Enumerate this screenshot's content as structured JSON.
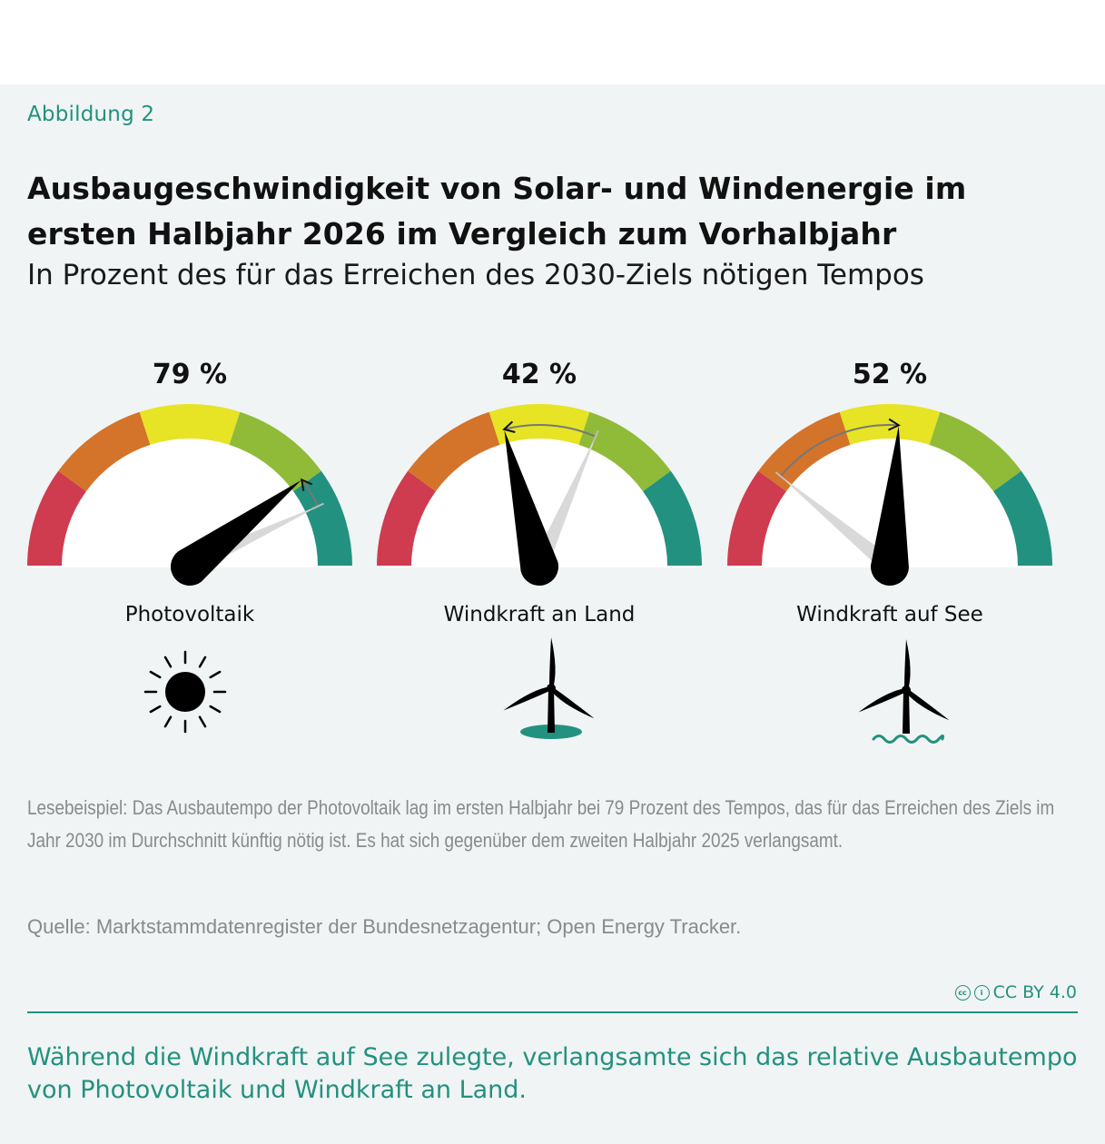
{
  "figure_label": "Abbildung 2",
  "title": "Ausbaugeschwindigkeit von Solar- und Windenergie im ersten Halbjahr 2026 im Vergleich zum Vorhalbjahr",
  "subtitle": "In Prozent des für das Erreichen des 2030-Ziels nötigen Tempos",
  "zone_colors": [
    "#cf3c4f",
    "#d4732a",
    "#e6e424",
    "#8fbb38",
    "#23917f"
  ],
  "colors": {
    "accent": "#23917f",
    "needle_current": "#000000",
    "needle_previous": "#d9d9d9",
    "background": "#f0f4f4"
  },
  "chart_data": {
    "type": "gauge",
    "unit": "%",
    "categories": [
      "Photovoltaik",
      "Windkraft an Land",
      "Windkraft auf See"
    ],
    "series": [
      {
        "name": "Erstes Halbjahr 2026",
        "values": [
          79,
          42,
          52
        ]
      }
    ],
    "previous_values_estimated": [
      86,
      63,
      22
    ],
    "value_labels": [
      "79 %",
      "42 %",
      "52 %"
    ],
    "gauge_range": [
      0,
      100
    ],
    "zones": 5,
    "icons": [
      "sun-icon",
      "wind-turbine-land-icon",
      "wind-turbine-sea-icon"
    ]
  },
  "reading_example": "Lesebeispiel: Das Ausbautempo der Photovoltaik lag im ersten Halbjahr bei 79 Prozent des Tempos, das für das Erreichen des Ziels im Jahr 2030 im Durchschnitt künftig nötig ist. Es hat sich gegenüber dem zweiten Halbjahr 2025 verlangsamt.",
  "source": "Quelle: Marktstammdatenregister der Bundesnetzagentur; Open Energy Tracker.",
  "license": "CC BY 4.0",
  "caption": "Während die Windkraft auf See zulegte, verlangsamte sich das relative Ausbautempo von Photovoltaik und Windkraft an Land."
}
